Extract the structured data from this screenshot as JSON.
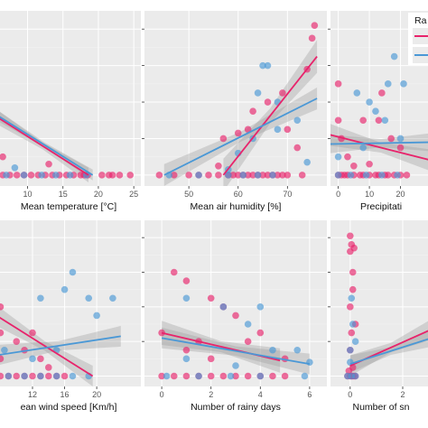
{
  "colors": {
    "panel_bg": "#ebebeb",
    "grid_major": "#ffffff",
    "grid_minor": "#f4f4f4",
    "series_red": "#e8236b",
    "series_blue": "#4a98d6",
    "ribbon": "#9a9a9a"
  },
  "legend": {
    "title": "Ra",
    "placement": "top-right"
  },
  "chart_data": [
    {
      "type": "scatter",
      "xlabel": "Mean temperature [°C]",
      "xticks": [
        "10",
        "15",
        "20",
        "25"
      ],
      "xlim": [
        5.6,
        26
      ],
      "ylim": [
        -0.6,
        9
      ],
      "grid": true,
      "series": [
        {
          "color": "red",
          "points": [
            [
              6.5,
              0
            ],
            [
              7.5,
              0
            ],
            [
              8.5,
              0
            ],
            [
              9.5,
              0
            ],
            [
              10.5,
              0
            ],
            [
              11.5,
              0
            ],
            [
              12.5,
              0
            ],
            [
              13.5,
              0
            ],
            [
              14.5,
              0
            ],
            [
              15.5,
              0
            ],
            [
              16.5,
              0
            ],
            [
              17.5,
              0
            ],
            [
              18,
              0
            ],
            [
              18.5,
              0
            ],
            [
              20.5,
              0
            ],
            [
              21.5,
              0
            ],
            [
              22,
              0
            ],
            [
              23,
              0
            ],
            [
              24.5,
              0
            ],
            [
              6.5,
              1
            ],
            [
              13,
              0.6
            ]
          ],
          "fit": [
            [
              5.6,
              3.2
            ],
            [
              18.6,
              0
            ]
          ],
          "band_halfwidth": 0.4
        },
        {
          "color": "blue",
          "points": [
            [
              7,
              0
            ],
            [
              9.5,
              0
            ],
            [
              12,
              0
            ],
            [
              14,
              0
            ],
            [
              16,
              0
            ],
            [
              18.3,
              0
            ],
            [
              8.2,
              0.4
            ]
          ],
          "fit": [
            [
              5.6,
              3.3
            ],
            [
              19.2,
              0
            ]
          ],
          "band_halfwidth": 0.3
        }
      ]
    },
    {
      "type": "scatter",
      "xlabel": "Mean air humidity [%]",
      "xticks": [
        "50",
        "60",
        "70"
      ],
      "xlim": [
        41,
        78
      ],
      "ylim": [
        -0.6,
        9
      ],
      "grid": true,
      "series": [
        {
          "color": "red",
          "points": [
            [
              44,
              0
            ],
            [
              47,
              0
            ],
            [
              50,
              0
            ],
            [
              52,
              0
            ],
            [
              54,
              0
            ],
            [
              56,
              0
            ],
            [
              58,
              0
            ],
            [
              59,
              0
            ],
            [
              60,
              0
            ],
            [
              61,
              0
            ],
            [
              62,
              0
            ],
            [
              63,
              0
            ],
            [
              64,
              0
            ],
            [
              65,
              0
            ],
            [
              66,
              0
            ],
            [
              67,
              0
            ],
            [
              68,
              0
            ],
            [
              69,
              0
            ],
            [
              70,
              0
            ],
            [
              73,
              0
            ],
            [
              56,
              0.5
            ],
            [
              63,
              3.5
            ],
            [
              62,
              2.5
            ],
            [
              66,
              4
            ],
            [
              70,
              2.5
            ],
            [
              72,
              1.5
            ],
            [
              74,
              5.8
            ],
            [
              75.5,
              8.2
            ],
            [
              75,
              7.5
            ],
            [
              69,
              4.5
            ],
            [
              57,
              2
            ],
            [
              60,
              2.3
            ]
          ],
          "fit": [
            [
              57,
              0
            ],
            [
              76,
              6.5
            ]
          ],
          "band_halfwidth": 0.9
        },
        {
          "color": "blue",
          "points": [
            [
              46,
              0
            ],
            [
              52,
              0
            ],
            [
              58,
              0
            ],
            [
              61,
              0
            ],
            [
              64,
              0
            ],
            [
              67,
              0
            ],
            [
              66,
              6
            ],
            [
              68,
              4
            ],
            [
              65,
              6
            ],
            [
              64,
              4.5
            ],
            [
              63,
              2
            ],
            [
              60,
              1.2
            ],
            [
              68,
              2.5
            ],
            [
              72,
              3
            ],
            [
              74,
              0.7
            ],
            [
              58,
              0.3
            ]
          ],
          "fit": [
            [
              45,
              0
            ],
            [
              76,
              4.2
            ]
          ],
          "band_halfwidth": 0.6
        }
      ]
    },
    {
      "type": "scatter",
      "xlabel": "Precipitati",
      "xticks": [
        "0",
        "10",
        "20"
      ],
      "xlim": [
        -2.5,
        30
      ],
      "ylim": [
        -0.6,
        9
      ],
      "grid": true,
      "series": [
        {
          "color": "red",
          "points": [
            [
              0,
              0
            ],
            [
              1,
              0
            ],
            [
              2,
              0
            ],
            [
              3,
              0
            ],
            [
              5,
              0
            ],
            [
              7,
              0
            ],
            [
              8,
              0
            ],
            [
              10,
              0
            ],
            [
              12,
              0
            ],
            [
              13,
              0
            ],
            [
              15,
              0
            ],
            [
              16,
              0
            ],
            [
              18,
              0
            ],
            [
              20,
              0
            ],
            [
              22,
              0
            ],
            [
              0,
              3
            ],
            [
              0,
              5
            ],
            [
              1,
              2
            ],
            [
              3,
              1
            ],
            [
              8,
              3
            ],
            [
              13,
              3
            ],
            [
              17,
              2
            ],
            [
              10,
              0.6
            ],
            [
              5,
              0.5
            ],
            [
              14,
              4.5
            ],
            [
              20,
              1.5
            ]
          ],
          "fit": [
            [
              -2.5,
              2.2
            ],
            [
              30,
              0.8
            ]
          ],
          "band_halfwidth": 0.6
        },
        {
          "color": "blue",
          "points": [
            [
              0,
              0
            ],
            [
              4,
              0
            ],
            [
              9,
              0
            ],
            [
              14,
              0
            ],
            [
              19,
              0
            ],
            [
              6,
              4.5
            ],
            [
              10,
              4
            ],
            [
              15,
              3
            ],
            [
              12,
              3.5
            ],
            [
              8,
              1.5
            ],
            [
              18,
              6.5
            ],
            [
              21,
              5
            ],
            [
              16,
              5
            ],
            [
              0,
              1
            ],
            [
              20,
              2
            ]
          ],
          "fit": [
            [
              -2.5,
              1.7
            ],
            [
              30,
              1.8
            ]
          ],
          "band_halfwidth": 0.5
        }
      ]
    },
    {
      "type": "scatter",
      "xlabel": "ean wind speed [Km/h]",
      "xticks": [
        "12",
        "16",
        "20"
      ],
      "xlim": [
        7.5,
        25.5
      ],
      "ylim": [
        -0.6,
        9
      ],
      "grid": true,
      "series": [
        {
          "color": "red",
          "points": [
            [
              8,
              0
            ],
            [
              9,
              0
            ],
            [
              10,
              0
            ],
            [
              11,
              0
            ],
            [
              12,
              0
            ],
            [
              13,
              0
            ],
            [
              14,
              0
            ],
            [
              15,
              0
            ],
            [
              16,
              0
            ],
            [
              8,
              1
            ],
            [
              8,
              2.5
            ],
            [
              10,
              2
            ],
            [
              11,
              1.5
            ],
            [
              12,
              2.5
            ],
            [
              13,
              1
            ],
            [
              8,
              4
            ],
            [
              14,
              0.5
            ]
          ],
          "fit": [
            [
              7.5,
              3.5
            ],
            [
              19.5,
              0
            ]
          ],
          "band_halfwidth": 0.6
        },
        {
          "color": "blue",
          "points": [
            [
              9,
              0
            ],
            [
              11,
              0
            ],
            [
              13,
              0
            ],
            [
              15,
              0
            ],
            [
              17,
              0
            ],
            [
              19,
              0
            ],
            [
              8.5,
              1.5
            ],
            [
              12,
              1
            ],
            [
              13,
              4.5
            ],
            [
              16,
              5
            ],
            [
              19,
              4.5
            ],
            [
              20,
              3.5
            ],
            [
              17,
              6
            ],
            [
              22,
              4.5
            ],
            [
              15,
              1.5
            ]
          ],
          "fit": [
            [
              7.5,
              1.2
            ],
            [
              23,
              2.3
            ]
          ],
          "band_halfwidth": 0.6
        }
      ]
    },
    {
      "type": "scatter",
      "xlabel": "Number of rainy days",
      "xticks": [
        "0",
        "2",
        "4",
        "6"
      ],
      "xlim": [
        -0.7,
        6.7
      ],
      "ylim": [
        -0.6,
        9
      ],
      "grid": true,
      "series": [
        {
          "color": "red",
          "points": [
            [
              0,
              0
            ],
            [
              0.5,
              0
            ],
            [
              1,
              0
            ],
            [
              1.5,
              0
            ],
            [
              2,
              0
            ],
            [
              2.5,
              0
            ],
            [
              3,
              0
            ],
            [
              3.5,
              0
            ],
            [
              4,
              0
            ],
            [
              4.5,
              0
            ],
            [
              5,
              0
            ],
            [
              0.5,
              6
            ],
            [
              1,
              5.5
            ],
            [
              2,
              4.5
            ],
            [
              2.5,
              4
            ],
            [
              3,
              3.5
            ],
            [
              3.5,
              2
            ],
            [
              4,
              2.5
            ],
            [
              1,
              1.5
            ],
            [
              1.5,
              2
            ],
            [
              0,
              2.5
            ],
            [
              5,
              1
            ],
            [
              2,
              1
            ]
          ],
          "fit": [
            [
              0,
              2.5
            ],
            [
              4.8,
              0.9
            ]
          ],
          "band_halfwidth": 0.7
        },
        {
          "color": "blue",
          "points": [
            [
              0.2,
              0
            ],
            [
              1.5,
              0
            ],
            [
              2.8,
              0
            ],
            [
              4,
              0
            ],
            [
              5.8,
              0
            ],
            [
              1,
              4.5
            ],
            [
              2.5,
              4
            ],
            [
              3.5,
              3
            ],
            [
              4,
              4
            ],
            [
              4.5,
              1.5
            ],
            [
              3,
              0.6
            ],
            [
              5.5,
              1.5
            ],
            [
              6,
              0.8
            ],
            [
              1,
              1
            ]
          ],
          "fit": [
            [
              0,
              2.2
            ],
            [
              6,
              0.7
            ]
          ],
          "band_halfwidth": 0.6
        }
      ]
    },
    {
      "type": "scatter",
      "xlabel": "Number of sn",
      "xticks": [
        "0",
        "2"
      ],
      "xlim": [
        -0.75,
        3.1
      ],
      "ylim": [
        -0.6,
        9
      ],
      "grid": true,
      "series": [
        {
          "color": "red",
          "points": [
            [
              -0.1,
              0
            ],
            [
              0,
              0
            ],
            [
              0.05,
              0
            ],
            [
              0.1,
              0
            ],
            [
              0.15,
              0
            ],
            [
              0.2,
              0
            ],
            [
              -0.05,
              0.3
            ],
            [
              0.1,
              0.5
            ],
            [
              0,
              1.5
            ],
            [
              0.05,
              2.5
            ],
            [
              0,
              4
            ],
            [
              0.1,
              6
            ],
            [
              0,
              7.2
            ],
            [
              0.05,
              7.6
            ],
            [
              0.15,
              7.4
            ],
            [
              0,
              8.1
            ],
            [
              0.1,
              5
            ],
            [
              0.2,
              3
            ]
          ],
          "fit": [
            [
              0,
              0.6
            ],
            [
              3.1,
              2.7
            ]
          ],
          "band_halfwidth": 0.6
        },
        {
          "color": "blue",
          "points": [
            [
              -0.1,
              0
            ],
            [
              0.05,
              0
            ],
            [
              0.2,
              0
            ],
            [
              0,
              1.5
            ],
            [
              0.1,
              3
            ],
            [
              0.2,
              2
            ],
            [
              0,
              0.8
            ],
            [
              0.05,
              4.5
            ]
          ],
          "fit": [
            [
              0,
              0.7
            ],
            [
              3.1,
              2.2
            ]
          ],
          "band_halfwidth": 0.5
        }
      ]
    }
  ]
}
